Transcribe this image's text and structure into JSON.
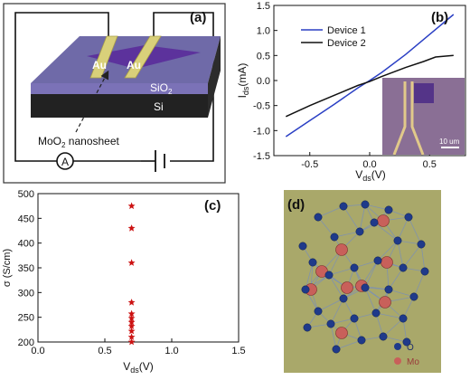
{
  "panels": {
    "a": {
      "label": "(a)",
      "electrode_1": "Au",
      "electrode_2": "Au",
      "layer_oxide": "SiO",
      "layer_oxide_sub": "2",
      "layer_substrate": "Si",
      "callout_main": "MoO",
      "callout_sub": "2",
      "callout_tail": " nanosheet",
      "ammeter": "A"
    },
    "b": {
      "label": "(b)",
      "inset_scale": "10 um"
    },
    "c": {
      "label": "(c)"
    },
    "d": {
      "label": "(d)",
      "legend_o": "O",
      "legend_mo": "Mo"
    }
  },
  "colors": {
    "device1": "#2a3fc4",
    "device2": "#111111",
    "stars": "#cc1111",
    "crystal_bg": "#a9a86a",
    "oxygen": "#1f3a8a",
    "molybdenum": "#c8605a",
    "substrate_top": "#6f6aa8",
    "au": "#d9d07a"
  },
  "chart_data": [
    {
      "panel": "b",
      "type": "line",
      "xlabel_main": "V",
      "xlabel_sub": "ds",
      "xlabel_unit": "(V)",
      "ylabel_main": "I",
      "ylabel_sub": "ds",
      "ylabel_unit": "(mA)",
      "xlim": [
        -0.8,
        0.8
      ],
      "ylim": [
        -1.5,
        1.5
      ],
      "xticks": [
        -0.5,
        0.0,
        0.5
      ],
      "xtick_labels": [
        "-0.5",
        "0.0",
        "0.5"
      ],
      "yticks": [
        -1.5,
        -1.0,
        -0.5,
        0.0,
        0.5,
        1.0,
        1.5
      ],
      "ytick_labels": [
        "-1.5",
        "-1.0",
        "-0.5",
        "0.0",
        "0.5",
        "1.0",
        "1.5"
      ],
      "legend_position": "top-right",
      "series": [
        {
          "name": "Device 1",
          "color": "#2a3fc4",
          "x": [
            -0.7,
            -0.5,
            -0.3,
            -0.1,
            0.0,
            0.1,
            0.3,
            0.5,
            0.7
          ],
          "y": [
            -1.12,
            -0.8,
            -0.48,
            -0.15,
            0.0,
            0.16,
            0.52,
            0.92,
            1.32
          ]
        },
        {
          "name": "Device 2",
          "color": "#111111",
          "x": [
            -0.7,
            -0.5,
            -0.3,
            -0.1,
            0.0,
            0.1,
            0.3,
            0.45,
            0.55,
            0.7
          ],
          "y": [
            -0.72,
            -0.5,
            -0.3,
            -0.1,
            -0.02,
            0.08,
            0.26,
            0.38,
            0.47,
            0.5
          ]
        }
      ]
    },
    {
      "panel": "c",
      "type": "scatter",
      "xlabel_main": "V",
      "xlabel_sub": "ds",
      "xlabel_unit": "(V)",
      "ylabel": "σ (S/cm)",
      "xlim": [
        0.0,
        1.5
      ],
      "ylim": [
        200,
        500
      ],
      "xticks": [
        0.0,
        0.5,
        1.0,
        1.5
      ],
      "xtick_labels": [
        "0.0",
        "0.5",
        "1.0",
        "1.5"
      ],
      "yticks": [
        200,
        250,
        300,
        350,
        400,
        450,
        500
      ],
      "ytick_labels": [
        "200",
        "250",
        "300",
        "350",
        "400",
        "450",
        "500"
      ],
      "marker": "star",
      "x": [
        0.7,
        0.7,
        0.7,
        0.7,
        0.7,
        0.7,
        0.7,
        0.7,
        0.7,
        0.7,
        0.7
      ],
      "y": [
        475,
        430,
        360,
        280,
        257,
        248,
        240,
        232,
        222,
        210,
        200
      ]
    }
  ]
}
